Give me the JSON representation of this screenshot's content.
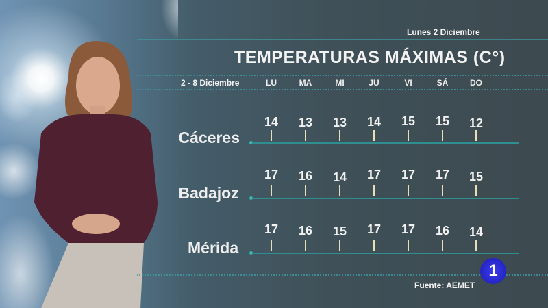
{
  "header": {
    "date": "Lunes 2 Diciembre",
    "title": "TEMPERATURAS MÁXIMAS (C°)",
    "range": "2 - 8 Diciembre"
  },
  "footer": {
    "source": "Fuente: AEMET",
    "channel_logo": "1"
  },
  "colors": {
    "line": "#2f8f90",
    "tick": "#e6dfb8",
    "logo": "#2a2ad0"
  },
  "chart_data": {
    "type": "table",
    "title": "TEMPERATURAS MÁXIMAS (C°)",
    "categories": [
      "LU",
      "MA",
      "MI",
      "JU",
      "VI",
      "SÁ",
      "DO"
    ],
    "series": [
      {
        "name": "Cáceres",
        "values": [
          14,
          13,
          13,
          14,
          15,
          15,
          12
        ]
      },
      {
        "name": "Badajoz",
        "values": [
          17,
          16,
          14,
          17,
          17,
          17,
          15
        ]
      },
      {
        "name": "Mérida",
        "values": [
          17,
          16,
          15,
          17,
          17,
          16,
          14
        ]
      }
    ]
  }
}
